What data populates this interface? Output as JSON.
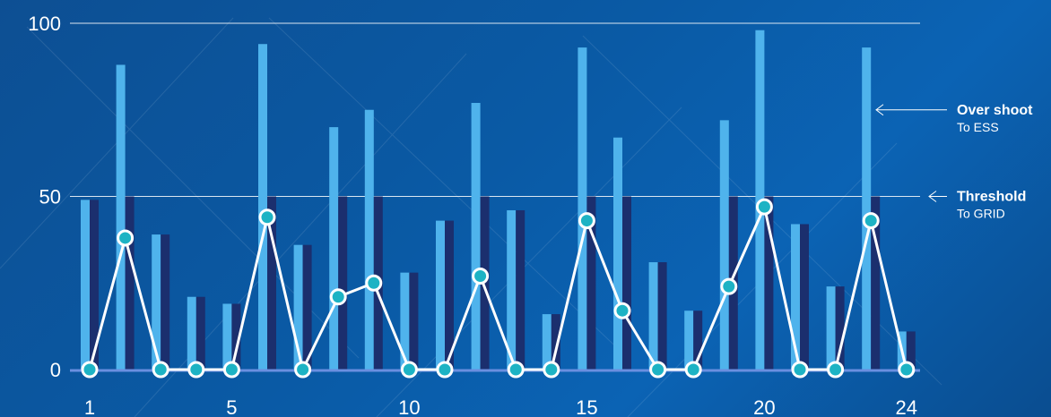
{
  "chart_data": {
    "type": "bar",
    "x": [
      1,
      2,
      3,
      4,
      5,
      6,
      7,
      8,
      9,
      10,
      11,
      12,
      13,
      14,
      15,
      16,
      17,
      18,
      19,
      20,
      21,
      22,
      23,
      24
    ],
    "x_tick_labels": [
      "1",
      "5",
      "10",
      "15",
      "20",
      "24"
    ],
    "y_tick_labels": [
      "0",
      "50",
      "100"
    ],
    "ylim": [
      0,
      100
    ],
    "grid": false,
    "series": [
      {
        "type": "bar",
        "color": "#4fb3ec",
        "values": [
          49,
          88,
          39,
          21,
          19,
          94,
          36,
          70,
          75,
          28,
          43,
          77,
          46,
          16,
          93,
          67,
          31,
          17,
          72,
          98,
          42,
          24,
          93,
          11
        ]
      },
      {
        "type": "bar",
        "color": "#1b2f6e",
        "values": [
          49,
          50,
          39,
          21,
          19,
          50,
          36,
          50,
          50,
          28,
          43,
          50,
          46,
          16,
          50,
          50,
          31,
          17,
          50,
          50,
          42,
          24,
          50,
          11
        ]
      },
      {
        "type": "line",
        "color": "#ffffff",
        "marker_color": "#1db3c4",
        "values": [
          0,
          38,
          0,
          0,
          0,
          44,
          0,
          21,
          25,
          0,
          0,
          27,
          0,
          0,
          43,
          17,
          0,
          0,
          24,
          47,
          0,
          0,
          43,
          0
        ]
      }
    ],
    "reference_lines": [
      {
        "y": 100
      },
      {
        "y": 50
      }
    ],
    "annotations": [
      {
        "title": "Over shoot",
        "subtitle": "To ESS",
        "y": 75
      },
      {
        "title": "Threshold",
        "subtitle": "To GRID",
        "y": 50
      }
    ]
  },
  "colors": {
    "axis": "#6a8fe0",
    "gridline": "#ffffff",
    "arrow": "#ffffff"
  }
}
